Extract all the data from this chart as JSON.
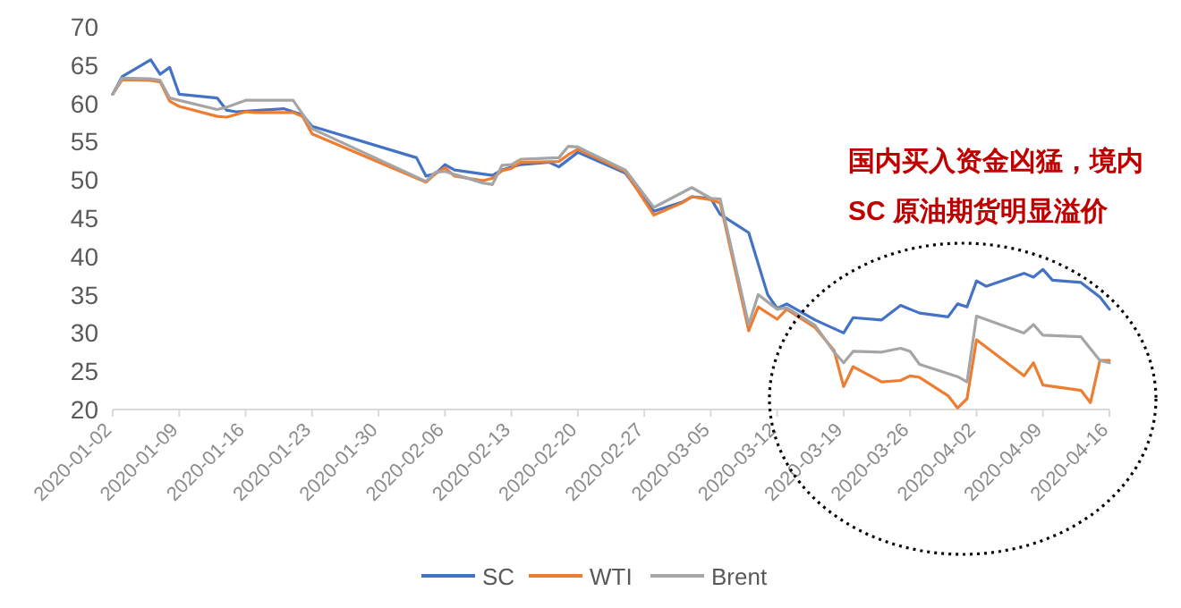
{
  "chart_data": {
    "type": "line",
    "xlim": [
      "2020-01-02",
      "2020-04-16"
    ],
    "xticks": [
      "2020-01-02",
      "2020-01-09",
      "2020-01-16",
      "2020-01-23",
      "2020-01-30",
      "2020-02-06",
      "2020-02-13",
      "2020-02-20",
      "2020-02-27",
      "2020-03-05",
      "2020-03-12",
      "2020-03-19",
      "2020-03-26",
      "2020-04-02",
      "2020-04-09",
      "2020-04-16"
    ],
    "ylim": [
      20,
      70
    ],
    "yticks": [
      20,
      25,
      30,
      35,
      40,
      45,
      50,
      55,
      60,
      65,
      70
    ],
    "grid": false,
    "legend": "bottom",
    "marker": "none",
    "line_style": "solid",
    "series": [
      {
        "name": "SC",
        "color": "#4472c4",
        "x": [
          "2020-01-02",
          "2020-01-03",
          "2020-01-06",
          "2020-01-07",
          "2020-01-08",
          "2020-01-09",
          "2020-01-13",
          "2020-01-14",
          "2020-01-15",
          "2020-01-20",
          "2020-01-22",
          "2020-01-23",
          "2020-02-03",
          "2020-02-04",
          "2020-02-05",
          "2020-02-06",
          "2020-02-07",
          "2020-02-11",
          "2020-02-12",
          "2020-02-14",
          "2020-02-17",
          "2020-02-18",
          "2020-02-20",
          "2020-02-25",
          "2020-02-28",
          "2020-03-02",
          "2020-03-03",
          "2020-03-05",
          "2020-03-06",
          "2020-03-09",
          "2020-03-11",
          "2020-03-12",
          "2020-03-13",
          "2020-03-16",
          "2020-03-19",
          "2020-03-20",
          "2020-03-23",
          "2020-03-25",
          "2020-03-27",
          "2020-03-30",
          "2020-03-31",
          "2020-04-01",
          "2020-04-02",
          "2020-04-03",
          "2020-04-07",
          "2020-04-08",
          "2020-04-09",
          "2020-04-10",
          "2020-04-13",
          "2020-04-15",
          "2020-04-16"
        ],
        "values": [
          61.2,
          63.5,
          65.7,
          63.8,
          64.7,
          61.2,
          60.7,
          59.1,
          58.9,
          59.3,
          58.5,
          57.0,
          52.9,
          50.5,
          50.8,
          52.0,
          51.3,
          50.6,
          51.3,
          52.0,
          52.3,
          51.7,
          53.6,
          50.9,
          45.9,
          47.1,
          47.8,
          47.6,
          45.5,
          43.1,
          35.0,
          33.2,
          33.8,
          31.7,
          30.0,
          32.0,
          31.7,
          33.6,
          32.6,
          32.1,
          33.8,
          33.4,
          36.8,
          36.1,
          37.8,
          37.3,
          38.3,
          36.9,
          36.6,
          34.7,
          33.1
        ]
      },
      {
        "name": "WTI",
        "color": "#ed7d31",
        "x": [
          "2020-01-02",
          "2020-01-03",
          "2020-01-06",
          "2020-01-07",
          "2020-01-08",
          "2020-01-09",
          "2020-01-13",
          "2020-01-14",
          "2020-01-16",
          "2020-01-17",
          "2020-01-21",
          "2020-01-22",
          "2020-01-23",
          "2020-02-04",
          "2020-02-05",
          "2020-02-06",
          "2020-02-07",
          "2020-02-10",
          "2020-02-11",
          "2020-02-12",
          "2020-02-13",
          "2020-02-14",
          "2020-02-18",
          "2020-02-19",
          "2020-02-20",
          "2020-02-25",
          "2020-02-28",
          "2020-03-02",
          "2020-03-03",
          "2020-03-05",
          "2020-03-06",
          "2020-03-09",
          "2020-03-10",
          "2020-03-12",
          "2020-03-13",
          "2020-03-16",
          "2020-03-18",
          "2020-03-19",
          "2020-03-20",
          "2020-03-23",
          "2020-03-25",
          "2020-03-26",
          "2020-03-27",
          "2020-03-30",
          "2020-03-31",
          "2020-04-01",
          "2020-04-02",
          "2020-04-07",
          "2020-04-08",
          "2020-04-09",
          "2020-04-13",
          "2020-04-14",
          "2020-04-15",
          "2020-04-16"
        ],
        "values": [
          61.2,
          63.1,
          63.0,
          62.8,
          60.3,
          59.6,
          58.3,
          58.2,
          58.9,
          58.8,
          58.8,
          58.3,
          56.0,
          49.7,
          50.8,
          51.6,
          50.5,
          49.9,
          50.2,
          51.2,
          51.5,
          52.3,
          52.4,
          53.3,
          54.0,
          51.1,
          45.4,
          47.0,
          47.8,
          47.4,
          47.0,
          30.3,
          33.4,
          31.8,
          33.1,
          30.7,
          27.7,
          23.0,
          25.6,
          23.6,
          23.8,
          24.4,
          24.2,
          21.8,
          20.2,
          21.4,
          29.1,
          24.4,
          26.1,
          23.2,
          22.5,
          20.9,
          26.4,
          26.4
        ]
      },
      {
        "name": "Brent",
        "color": "#a5a5a5",
        "x": [
          "2020-01-02",
          "2020-01-03",
          "2020-01-06",
          "2020-01-07",
          "2020-01-08",
          "2020-01-13",
          "2020-01-14",
          "2020-01-16",
          "2020-01-17",
          "2020-01-21",
          "2020-01-22",
          "2020-01-23",
          "2020-02-04",
          "2020-02-05",
          "2020-02-06",
          "2020-02-10",
          "2020-02-11",
          "2020-02-12",
          "2020-02-13",
          "2020-02-14",
          "2020-02-18",
          "2020-02-19",
          "2020-02-20",
          "2020-02-25",
          "2020-02-28",
          "2020-03-03",
          "2020-03-05",
          "2020-03-06",
          "2020-03-09",
          "2020-03-10",
          "2020-03-12",
          "2020-03-13",
          "2020-03-16",
          "2020-03-18",
          "2020-03-19",
          "2020-03-20",
          "2020-03-23",
          "2020-03-25",
          "2020-03-26",
          "2020-03-27",
          "2020-03-31",
          "2020-04-01",
          "2020-04-02",
          "2020-04-07",
          "2020-04-08",
          "2020-04-09",
          "2020-04-13",
          "2020-04-15",
          "2020-04-16"
        ],
        "values": [
          61.2,
          63.3,
          63.2,
          63.0,
          60.7,
          59.2,
          59.5,
          60.4,
          60.4,
          60.4,
          58.6,
          56.7,
          49.8,
          51.0,
          51.1,
          49.6,
          49.4,
          51.9,
          52.0,
          52.7,
          52.9,
          54.4,
          54.3,
          51.3,
          46.4,
          49.0,
          47.6,
          47.5,
          31.1,
          35.0,
          33.1,
          33.3,
          31.0,
          27.5,
          26.1,
          27.6,
          27.5,
          28.0,
          27.6,
          25.9,
          24.3,
          23.6,
          32.2,
          30.0,
          31.1,
          29.7,
          29.5,
          26.4,
          26.1
        ]
      }
    ],
    "annotations": [
      "国内买入资金凶猛，境内",
      "SC 原油期货明显溢价"
    ]
  }
}
